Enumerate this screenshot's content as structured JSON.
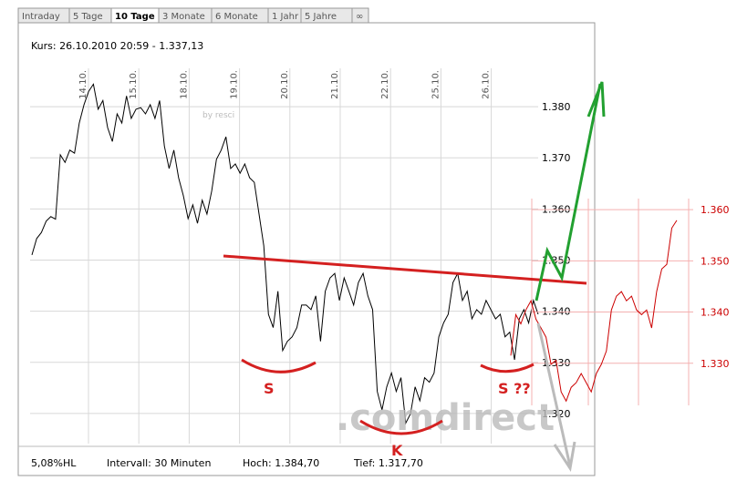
{
  "tabs": [
    "Intraday",
    "5 Tage",
    "10 Tage",
    "3 Monate",
    "6 Monate",
    "1 Jahr",
    "5 Jahre",
    "∞"
  ],
  "header": {
    "kurs": "Kurs: 26.10.2010 20:59 - 1.337,13"
  },
  "footer": {
    "hl": "5,08%HL",
    "intervall": "Intervall: 30 Minuten",
    "hoch": "Hoch: 1.384,70",
    "tief": "Tief: 1.317,70"
  },
  "annotations": {
    "s_left": "S",
    "k": "K",
    "s_right": "S ??",
    "credit": "by resci",
    "watermark": ".comdirect"
  },
  "chart_data": [
    {
      "type": "line",
      "x_labels": [
        "14.10.",
        "15.10.",
        "18.10.",
        "19.10.",
        "20.10.",
        "21.10.",
        "22.10.",
        "25.10.",
        "26.10."
      ],
      "ylim": [
        1.3141,
        1.3875
      ],
      "yticks": [
        {
          "value": 1.32,
          "label": "1.320"
        },
        {
          "value": 1.33,
          "label": "1.330"
        },
        {
          "value": 1.34,
          "label": "1.340"
        },
        {
          "value": 1.35,
          "label": "1.350"
        },
        {
          "value": 1.36,
          "label": "1.360"
        },
        {
          "value": 1.37,
          "label": "1.370"
        },
        {
          "value": 1.38,
          "label": "1.380"
        }
      ],
      "grid": true,
      "series": [
        {
          "color": "#000000",
          "values": [
            1.351,
            1.3542,
            1.3554,
            1.3576,
            1.3585,
            1.358,
            1.3706,
            1.3691,
            1.3715,
            1.3709,
            1.3768,
            1.3804,
            1.383,
            1.3844,
            1.3795,
            1.3812,
            1.3759,
            1.3732,
            1.3786,
            1.3768,
            1.3821,
            1.3777,
            1.3795,
            1.3798,
            1.3786,
            1.3804,
            1.3777,
            1.3812,
            1.3723,
            1.3679,
            1.3715,
            1.3661,
            1.3626,
            1.3581,
            1.3608,
            1.3572,
            1.3617,
            1.359,
            1.3635,
            1.3697,
            1.3715,
            1.3741,
            1.3679,
            1.3688,
            1.367,
            1.3688,
            1.3661,
            1.3652,
            1.359,
            1.3528,
            1.3394,
            1.3368,
            1.3439,
            1.3323,
            1.3341,
            1.335,
            1.3368,
            1.3412,
            1.3412,
            1.3403,
            1.343,
            1.3341,
            1.3439,
            1.3465,
            1.3474,
            1.3421,
            1.3465,
            1.3439,
            1.3412,
            1.3456,
            1.3474,
            1.343,
            1.3403,
            1.3243,
            1.3207,
            1.3252,
            1.3279,
            1.3243,
            1.327,
            1.3181,
            1.3199,
            1.3252,
            1.3225,
            1.327,
            1.3261,
            1.3279,
            1.335,
            1.3377,
            1.3394,
            1.3456,
            1.3474,
            1.3421,
            1.3439,
            1.3385,
            1.3403,
            1.3394,
            1.3421,
            1.3403,
            1.3385,
            1.3394,
            1.335,
            1.3359,
            1.3305,
            1.3385,
            1.3403,
            1.3377,
            1.3421,
            1.3394
          ]
        }
      ]
    },
    {
      "type": "line",
      "y2lim": [
        1.3143,
        1.3876
      ],
      "y2ticks": [
        {
          "value": 1.33,
          "label": "1.330"
        },
        {
          "value": 1.34,
          "label": "1.340"
        },
        {
          "value": 1.35,
          "label": "1.350"
        },
        {
          "value": 1.36,
          "label": "1.360"
        }
      ],
      "grid": true,
      "series": [
        {
          "color": "#cc0000",
          "axis": "y2",
          "values": [
            1.3315,
            1.3395,
            1.3377,
            1.3404,
            1.3422,
            1.3386,
            1.3369,
            1.3351,
            1.3298,
            1.3306,
            1.3244,
            1.3226,
            1.3253,
            1.3262,
            1.328,
            1.3262,
            1.3244,
            1.328,
            1.3298,
            1.3324,
            1.3404,
            1.3431,
            1.344,
            1.3422,
            1.3431,
            1.3404,
            1.3395,
            1.3404,
            1.3369,
            1.344,
            1.3484,
            1.3493,
            1.3564,
            1.3579
          ]
        }
      ]
    }
  ]
}
